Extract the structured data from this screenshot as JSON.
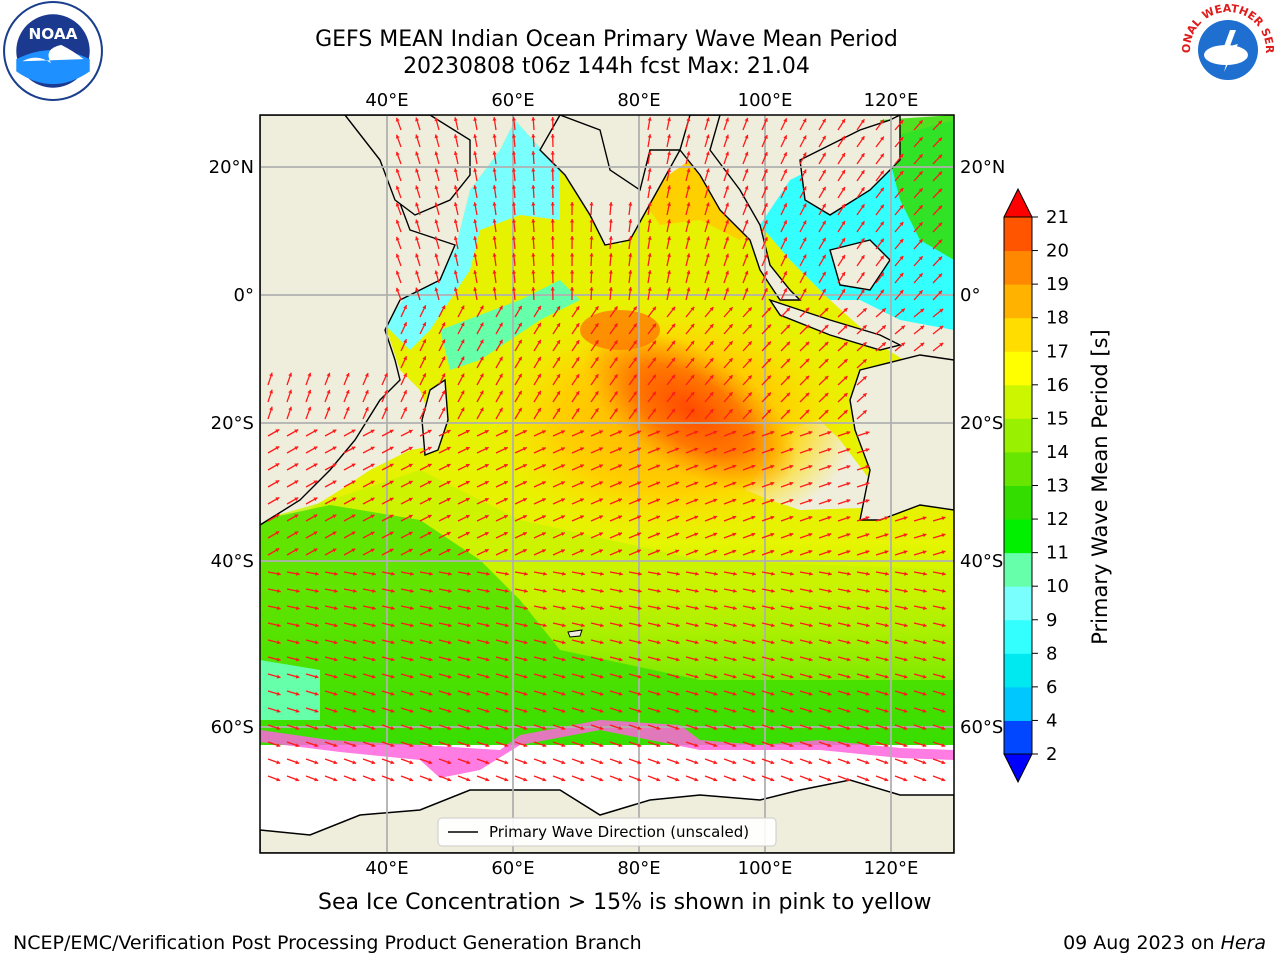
{
  "title": {
    "line1": "GEFS MEAN Indian Ocean Primary Wave Mean Period",
    "line2": "20230808 t06z 144h fcst   Max: 21.04"
  },
  "logos": {
    "left": "NOAA",
    "right_text": "NATIONAL WEATHER SERVICE"
  },
  "map": {
    "lon_ticks": [
      "40°E",
      "60°E",
      "80°E",
      "100°E",
      "120°E"
    ],
    "lat_ticks": [
      "20°N",
      "0°",
      "20°S",
      "40°S",
      "60°S"
    ],
    "legend_label": "Primary Wave Direction (unscaled)",
    "colors": {
      "land": "#efeedd",
      "ice_free_land": "#ffffff",
      "arrow": "#ff1a1a",
      "coast": "#000000",
      "grid": "#b0b0b0"
    }
  },
  "colorbar": {
    "label": "Primary Wave Mean Period [s]",
    "levels": [
      2,
      4,
      6,
      8,
      9,
      10,
      11,
      12,
      13,
      14,
      15,
      16,
      17,
      18,
      19,
      20,
      21
    ],
    "tick_labels": [
      "2",
      "4",
      "6",
      "8",
      "9",
      "10",
      "11",
      "12",
      "13",
      "14",
      "15",
      "16",
      "17",
      "18",
      "19",
      "20",
      "21"
    ],
    "colors": [
      "#0047ff",
      "#00c8ff",
      "#00e8f0",
      "#33ffff",
      "#7affff",
      "#66ffaa",
      "#00f000",
      "#33dd00",
      "#66e600",
      "#99f000",
      "#ccf500",
      "#ffff00",
      "#ffdd00",
      "#ffb300",
      "#ff8800",
      "#ff5500",
      "#ff2a00"
    ],
    "under_color": "#0000ff",
    "over_color": "#ff0000"
  },
  "ice_note": "Sea Ice Concentration > 15% is shown in pink to yellow",
  "footer": {
    "left": "NCEP/EMC/Verification Post Processing Product Generation Branch",
    "date": "09 Aug 2023 on ",
    "host": "Hera"
  }
}
